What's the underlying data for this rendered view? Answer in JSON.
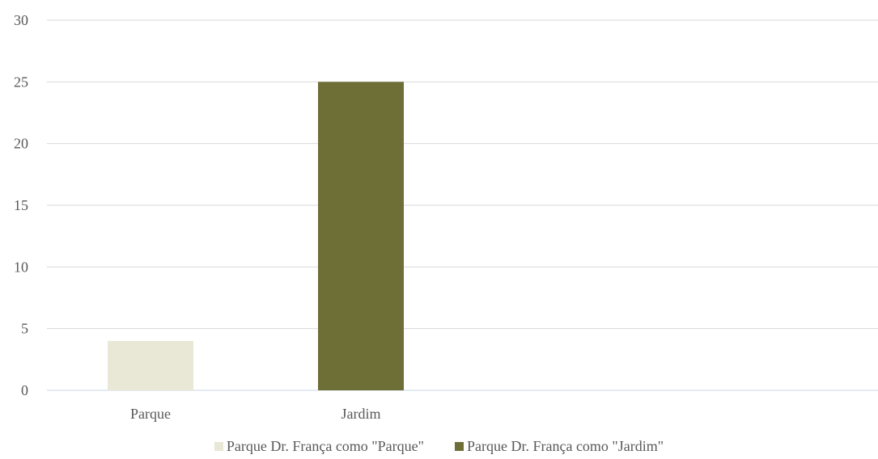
{
  "chart_data": {
    "type": "bar",
    "categories": [
      "Parque",
      "Jardim"
    ],
    "series": [
      {
        "name": "Parque Dr. França como \"Parque\"",
        "color": "#e9e8d6",
        "values": [
          4,
          null
        ]
      },
      {
        "name": "Parque Dr. França como \"Jardim\"",
        "color": "#6e6e37",
        "values": [
          null,
          25
        ]
      }
    ],
    "ylim": [
      0,
      30
    ],
    "yticks": [
      0,
      5,
      10,
      15,
      20,
      25,
      30
    ],
    "grid": true,
    "legend_position": "bottom",
    "title": "",
    "xlabel": "",
    "ylabel": ""
  }
}
